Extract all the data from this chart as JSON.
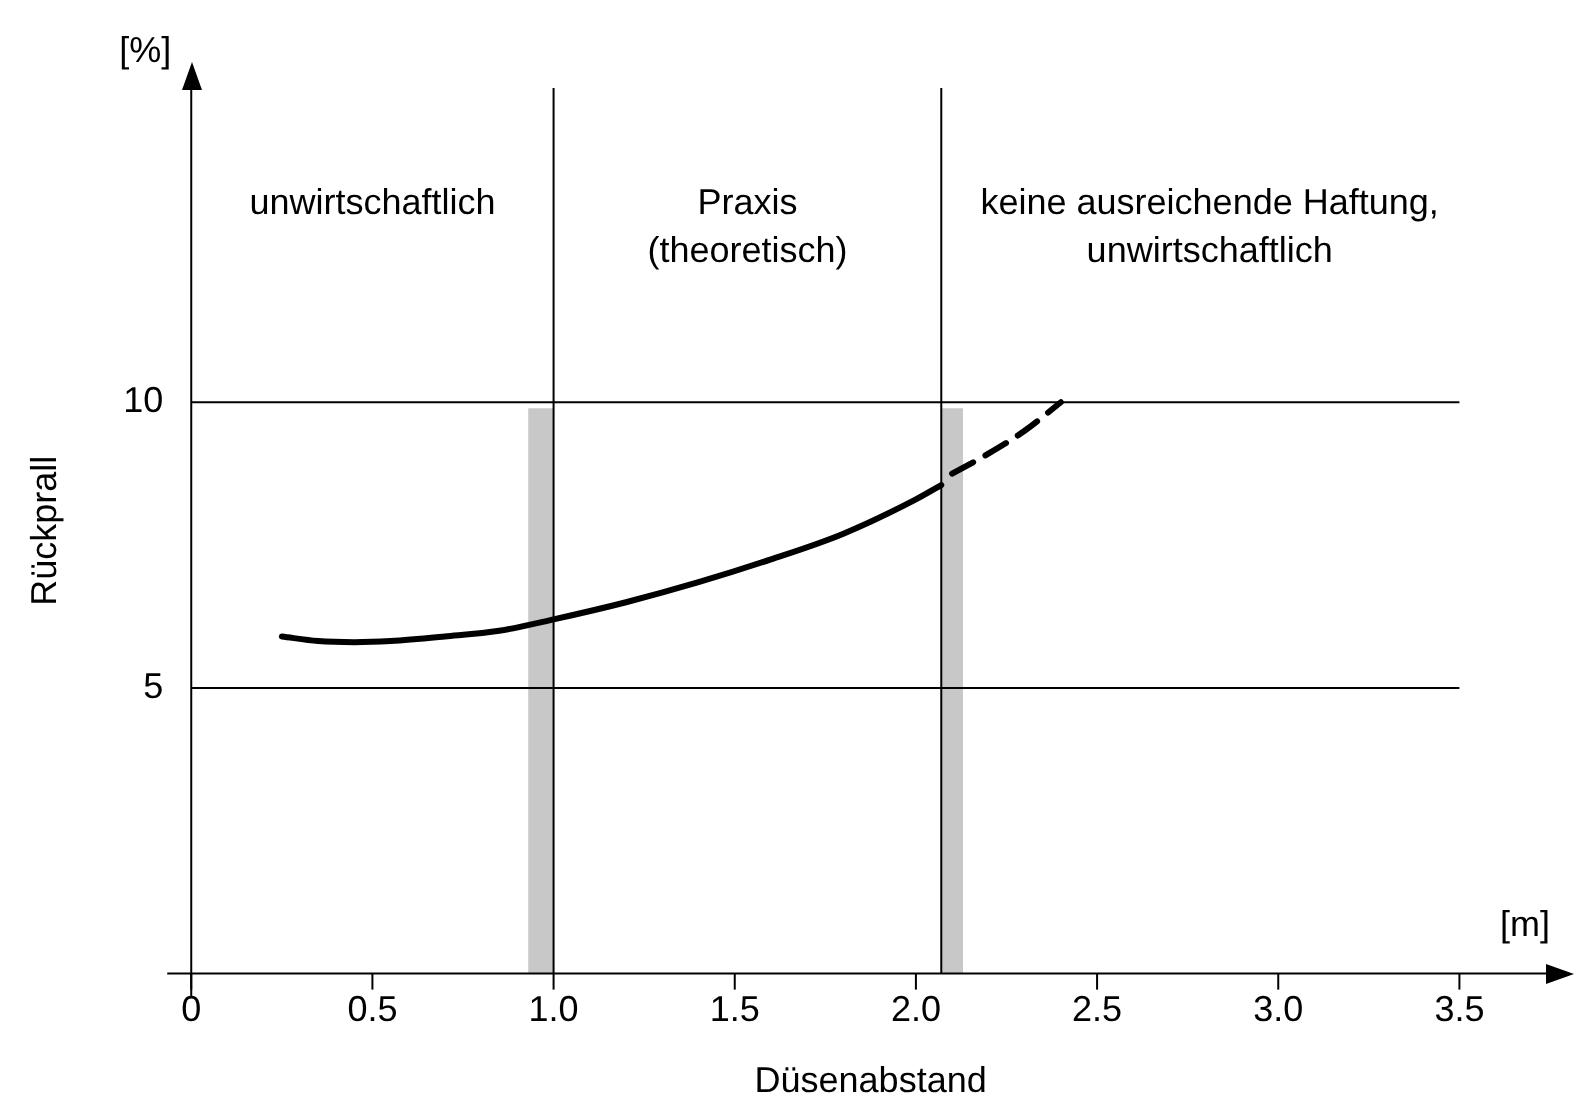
{
  "chart_data": {
    "type": "line",
    "xlabel": "Düsenabstand",
    "ylabel": "Rückprall",
    "annotations": [
      "unwirtschaftlich",
      "Praxis\n(theoretisch)",
      "keine ausreichende Haftung,\nunwirtschaftlich",
      "[%]",
      "[m]"
    ],
    "series": [
      {
        "color": "#000000",
        "line_style": "solid",
        "x": [
          0.25,
          0.35,
          0.45,
          0.55,
          0.7,
          0.85,
          1.0,
          1.2,
          1.4,
          1.6,
          1.8,
          2.0,
          2.07
        ],
        "values": [
          5.9,
          5.82,
          5.8,
          5.82,
          5.9,
          6.0,
          6.2,
          6.5,
          6.85,
          7.25,
          7.7,
          8.3,
          8.55
        ]
      },
      {
        "color": "#000000",
        "line_style": "dashed",
        "x": [
          2.1,
          2.2,
          2.3,
          2.4
        ],
        "values": [
          8.75,
          9.1,
          9.5,
          10.0
        ]
      }
    ],
    "xlim": [
      0,
      3.75
    ],
    "ylim": [
      0,
      15.5
    ],
    "xticks": [
      0,
      {
        "value": 0.5,
        "label": "0.5"
      },
      {
        "value": 1,
        "label": "1.0"
      },
      {
        "value": 1.5,
        "label": "1.5"
      },
      {
        "value": 2,
        "label": "2.0"
      },
      {
        "value": 2.5,
        "label": "2.5"
      },
      {
        "value": 3,
        "label": "3.0"
      },
      {
        "value": 3.5,
        "label": "3.5"
      }
    ],
    "yticks": [
      5,
      10
    ],
    "grid": "y",
    "legend": false,
    "marker": "none",
    "ref_lines": [
      {
        "axis": "x",
        "value": 1.0,
        "color": "#000000"
      },
      {
        "axis": "x",
        "value": 2.07,
        "color": "#000000"
      }
    ],
    "bands": [
      {
        "axis": "x",
        "from": 0.93,
        "to": 1.0,
        "color": "#c8c8c8"
      },
      {
        "axis": "x",
        "from": 2.07,
        "to": 2.13,
        "color": "#c8c8c8"
      }
    ]
  }
}
